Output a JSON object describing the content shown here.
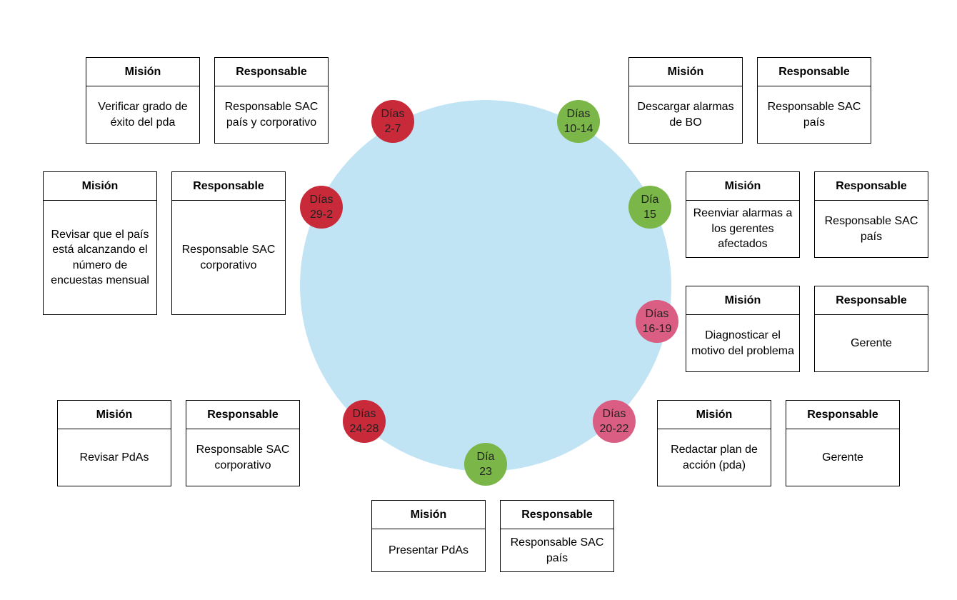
{
  "colors": {
    "ring": "#c1e4f5",
    "red": "#c92a39",
    "green": "#7ab648",
    "pink": "#da5e83"
  },
  "steps": [
    {
      "badge": "Días\n2-7",
      "color": "red",
      "mission_header": "Misión",
      "mission": "Verificar grado de éxito del pda",
      "owner_header": "Responsable",
      "owner": "Responsable SAC país y corporativo"
    },
    {
      "badge": "Días\n10-14",
      "color": "green",
      "mission_header": "Misión",
      "mission": "Descargar alarmas de BO",
      "owner_header": "Responsable",
      "owner": "Responsable SAC país"
    },
    {
      "badge": "Día\n15",
      "color": "green",
      "mission_header": "Misión",
      "mission": "Reenviar alarmas a los gerentes afectados",
      "owner_header": "Responsable",
      "owner": "Responsable SAC país"
    },
    {
      "badge": "Días\n16-19",
      "color": "pink",
      "mission_header": "Misión",
      "mission": "Diagnosticar el motivo del problema",
      "owner_header": "Responsable",
      "owner": "Gerente"
    },
    {
      "badge": "Días\n20-22",
      "color": "pink",
      "mission_header": "Misión",
      "mission": "Redactar plan de acción (pda)",
      "owner_header": "Responsable",
      "owner": "Gerente"
    },
    {
      "badge": "Día\n23",
      "color": "green",
      "mission_header": "Misión",
      "mission": "Presentar PdAs",
      "owner_header": "Responsable",
      "owner": "Responsable SAC país"
    },
    {
      "badge": "Días\n24-28",
      "color": "red",
      "mission_header": "Misión",
      "mission": "Revisar PdAs",
      "owner_header": "Responsable",
      "owner": "Responsable SAC corporativo"
    },
    {
      "badge": "Días\n29-2",
      "color": "red",
      "mission_header": "Misión",
      "mission": "Revisar que el país está alcanzando el número de encuestas mensual",
      "owner_header": "Responsable",
      "owner": "Responsable SAC corporativo"
    }
  ]
}
